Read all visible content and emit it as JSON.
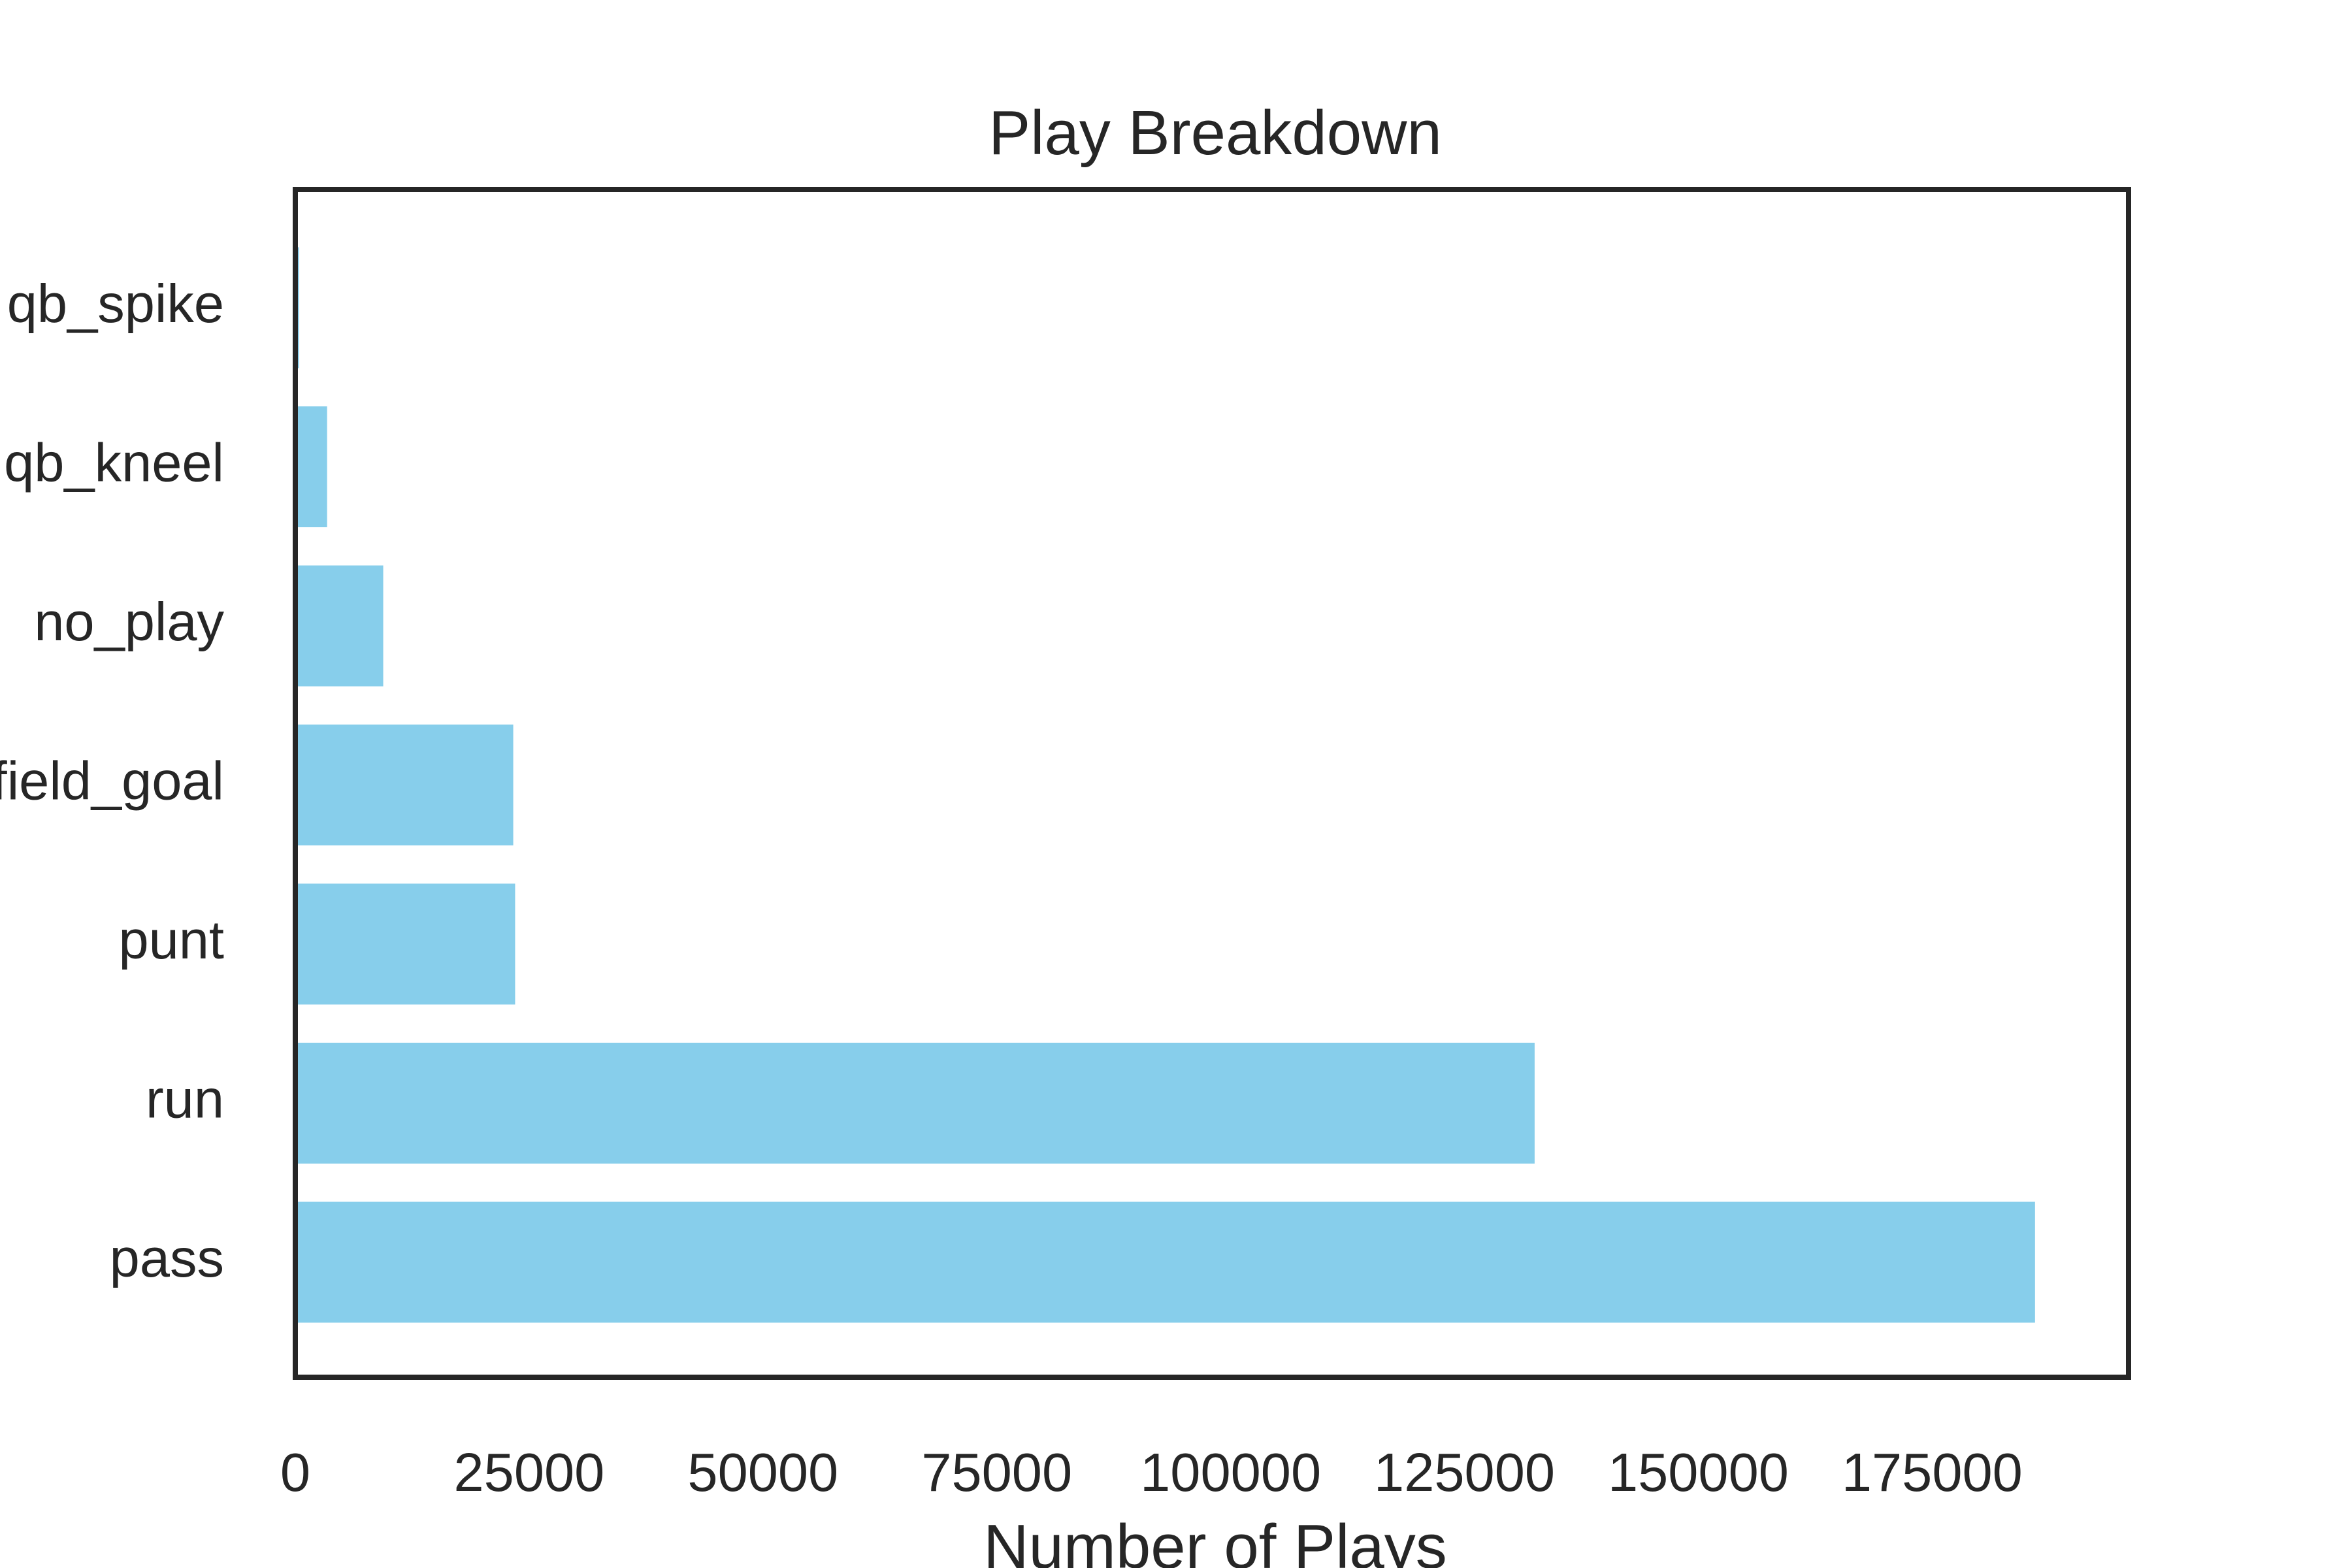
{
  "chart_data": {
    "type": "bar",
    "orientation": "horizontal",
    "title": "Play Breakdown",
    "xlabel": "Number of Plays",
    "ylabel": "",
    "categories": [
      "pass",
      "run",
      "punt",
      "field_goal",
      "no_play",
      "qb_kneel",
      "qb_spike"
    ],
    "values": [
      186000,
      132500,
      23500,
      23300,
      9400,
      3400,
      400
    ],
    "xlim": [
      0,
      196000
    ],
    "xticks": [
      0,
      25000,
      50000,
      75000,
      100000,
      125000,
      150000,
      175000
    ],
    "xtick_labels": [
      "0",
      "25000",
      "50000",
      "75000",
      "100000",
      "125000",
      "150000",
      "175000"
    ],
    "bar_color": "#87CEEB",
    "grid": false,
    "legend": "none"
  }
}
